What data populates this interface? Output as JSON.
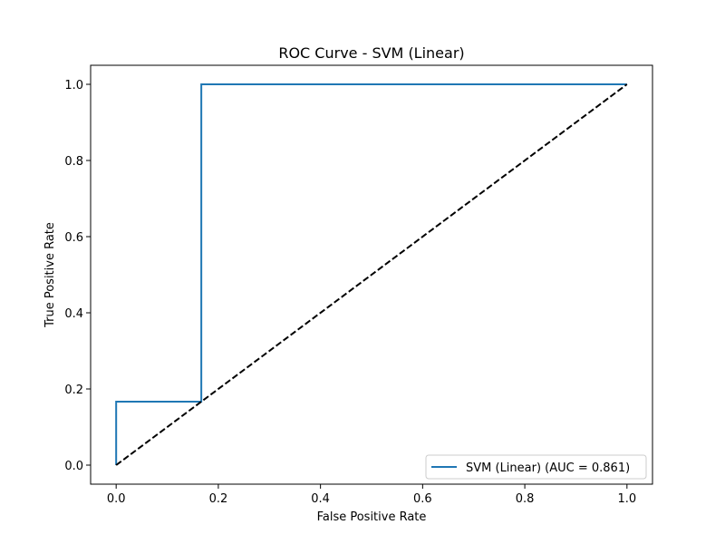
{
  "chart_data": {
    "type": "line",
    "title": "ROC Curve - SVM (Linear)",
    "xlabel": "False Positive Rate",
    "ylabel": "True Positive Rate",
    "xlim": [
      -0.05,
      1.05
    ],
    "ylim": [
      -0.05,
      1.05
    ],
    "xticks": [
      0.0,
      0.2,
      0.4,
      0.6,
      0.8,
      1.0
    ],
    "yticks": [
      0.0,
      0.2,
      0.4,
      0.6,
      0.8,
      1.0
    ],
    "xtick_labels": [
      "0.0",
      "0.2",
      "0.4",
      "0.6",
      "0.8",
      "1.0"
    ],
    "ytick_labels": [
      "0.0",
      "0.2",
      "0.4",
      "0.6",
      "0.8",
      "1.0"
    ],
    "grid": false,
    "legend_position": "lower-right",
    "series": [
      {
        "name": "SVM (Linear) (AUC = 0.861)",
        "color": "#1f77b4",
        "style": "solid",
        "x": [
          0.0,
          0.0,
          0.1667,
          0.1667,
          1.0
        ],
        "y": [
          0.0,
          0.1667,
          0.1667,
          1.0,
          1.0
        ]
      },
      {
        "color": "#000000",
        "style": "dashed",
        "x": [
          0.0,
          1.0
        ],
        "y": [
          0.0,
          1.0
        ]
      }
    ]
  }
}
